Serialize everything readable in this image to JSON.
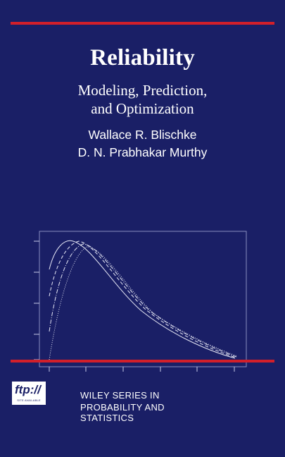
{
  "book": {
    "title": "Reliability",
    "subtitle_line1": "Modeling, Prediction,",
    "subtitle_line2": "and Optimization",
    "author1": "Wallace R. Blischke",
    "author2": "D. N. Prabhakar Murthy"
  },
  "badge": {
    "label": "ftp://",
    "small_text": "SITE AVAILABLE"
  },
  "series": {
    "line1": "WILEY SERIES IN",
    "line2": "PROBABILITY AND STATISTICS"
  },
  "colors": {
    "background": "#1a1f66",
    "rule": "#d21f2a",
    "text": "#ffffff"
  }
}
